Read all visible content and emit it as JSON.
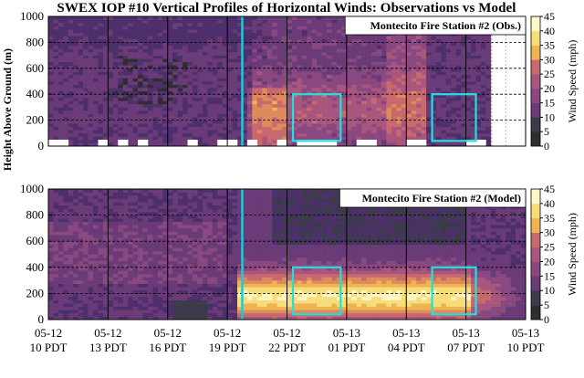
{
  "title": "SWEX IOP #10 Vertical Profiles of Horizontal Winds: Observations vs Model",
  "ylabel": "Height Above Ground (m)",
  "colorbar_label": "Wind Speed (mph)",
  "colorbar_ticks": [
    "0",
    "5",
    "10",
    "15",
    "20",
    "25",
    "30",
    "35",
    "40",
    "45"
  ],
  "colors": {
    "scale": [
      "#2e2e2e",
      "#3b3b4a",
      "#4c2f6b",
      "#6a3b78",
      "#8a4880",
      "#a9567f",
      "#c86a6d",
      "#de8a5a",
      "#eeb452",
      "#f7dd7a",
      "#fcf8c8"
    ],
    "highlight_box": "#22e0e0",
    "cursor_line": "#22c8d8"
  },
  "chart_data": [
    {
      "type": "heatmap",
      "panel": "top",
      "label": "Montecito Fire Station #2 (Obs.)",
      "title": "SWEX IOP #10 Vertical Profiles of Horizontal Winds: Observations vs Model",
      "xlabel": "",
      "ylabel": "Height Above Ground (m)",
      "ylim": [
        0,
        1000
      ],
      "yticks": [
        0,
        200,
        400,
        600,
        800,
        1000
      ],
      "x_ticks": [
        {
          "date": "05-12",
          "time": "10 PDT"
        },
        {
          "date": "05-12",
          "time": "13 PDT"
        },
        {
          "date": "05-12",
          "time": "16 PDT"
        },
        {
          "date": "05-12",
          "time": "19 PDT"
        },
        {
          "date": "05-12",
          "time": "22 PDT"
        },
        {
          "date": "05-13",
          "time": "01 PDT"
        },
        {
          "date": "05-13",
          "time": "04 PDT"
        },
        {
          "date": "05-13",
          "time": "07 PDT"
        },
        {
          "date": "05-13",
          "time": "10 PDT"
        }
      ],
      "value_range_mph": [
        0,
        45
      ],
      "vertical_line_at": "05-12 19:45 PDT",
      "highlight_boxes": [
        {
          "from": "05-12 22 PDT",
          "to": "05-13 00 PDT",
          "height_m": [
            40,
            400
          ]
        },
        {
          "from": "05-13 05 PDT",
          "to": "05-13 07 PDT",
          "height_m": [
            40,
            400
          ]
        }
      ],
      "grid": true
    },
    {
      "type": "heatmap",
      "panel": "bottom",
      "label": "Montecito Fire Station #2 (Model)",
      "xlabel": "",
      "ylabel": "",
      "ylim": [
        0,
        1000
      ],
      "yticks": [
        0,
        200,
        400,
        600,
        800,
        1000
      ],
      "x_ticks": [
        {
          "date": "05-12",
          "time": "10 PDT"
        },
        {
          "date": "05-12",
          "time": "13 PDT"
        },
        {
          "date": "05-12",
          "time": "16 PDT"
        },
        {
          "date": "05-12",
          "time": "19 PDT"
        },
        {
          "date": "05-12",
          "time": "22 PDT"
        },
        {
          "date": "05-13",
          "time": "01 PDT"
        },
        {
          "date": "05-13",
          "time": "04 PDT"
        },
        {
          "date": "05-13",
          "time": "07 PDT"
        },
        {
          "date": "05-13",
          "time": "10 PDT"
        }
      ],
      "value_range_mph": [
        0,
        45
      ],
      "vertical_line_at": "05-12 19:45 PDT",
      "highlight_boxes": [
        {
          "from": "05-12 22 PDT",
          "to": "05-13 00 PDT",
          "height_m": [
            40,
            400
          ]
        },
        {
          "from": "05-13 05 PDT",
          "to": "05-13 07 PDT",
          "height_m": [
            40,
            400
          ]
        }
      ],
      "grid": true
    }
  ]
}
